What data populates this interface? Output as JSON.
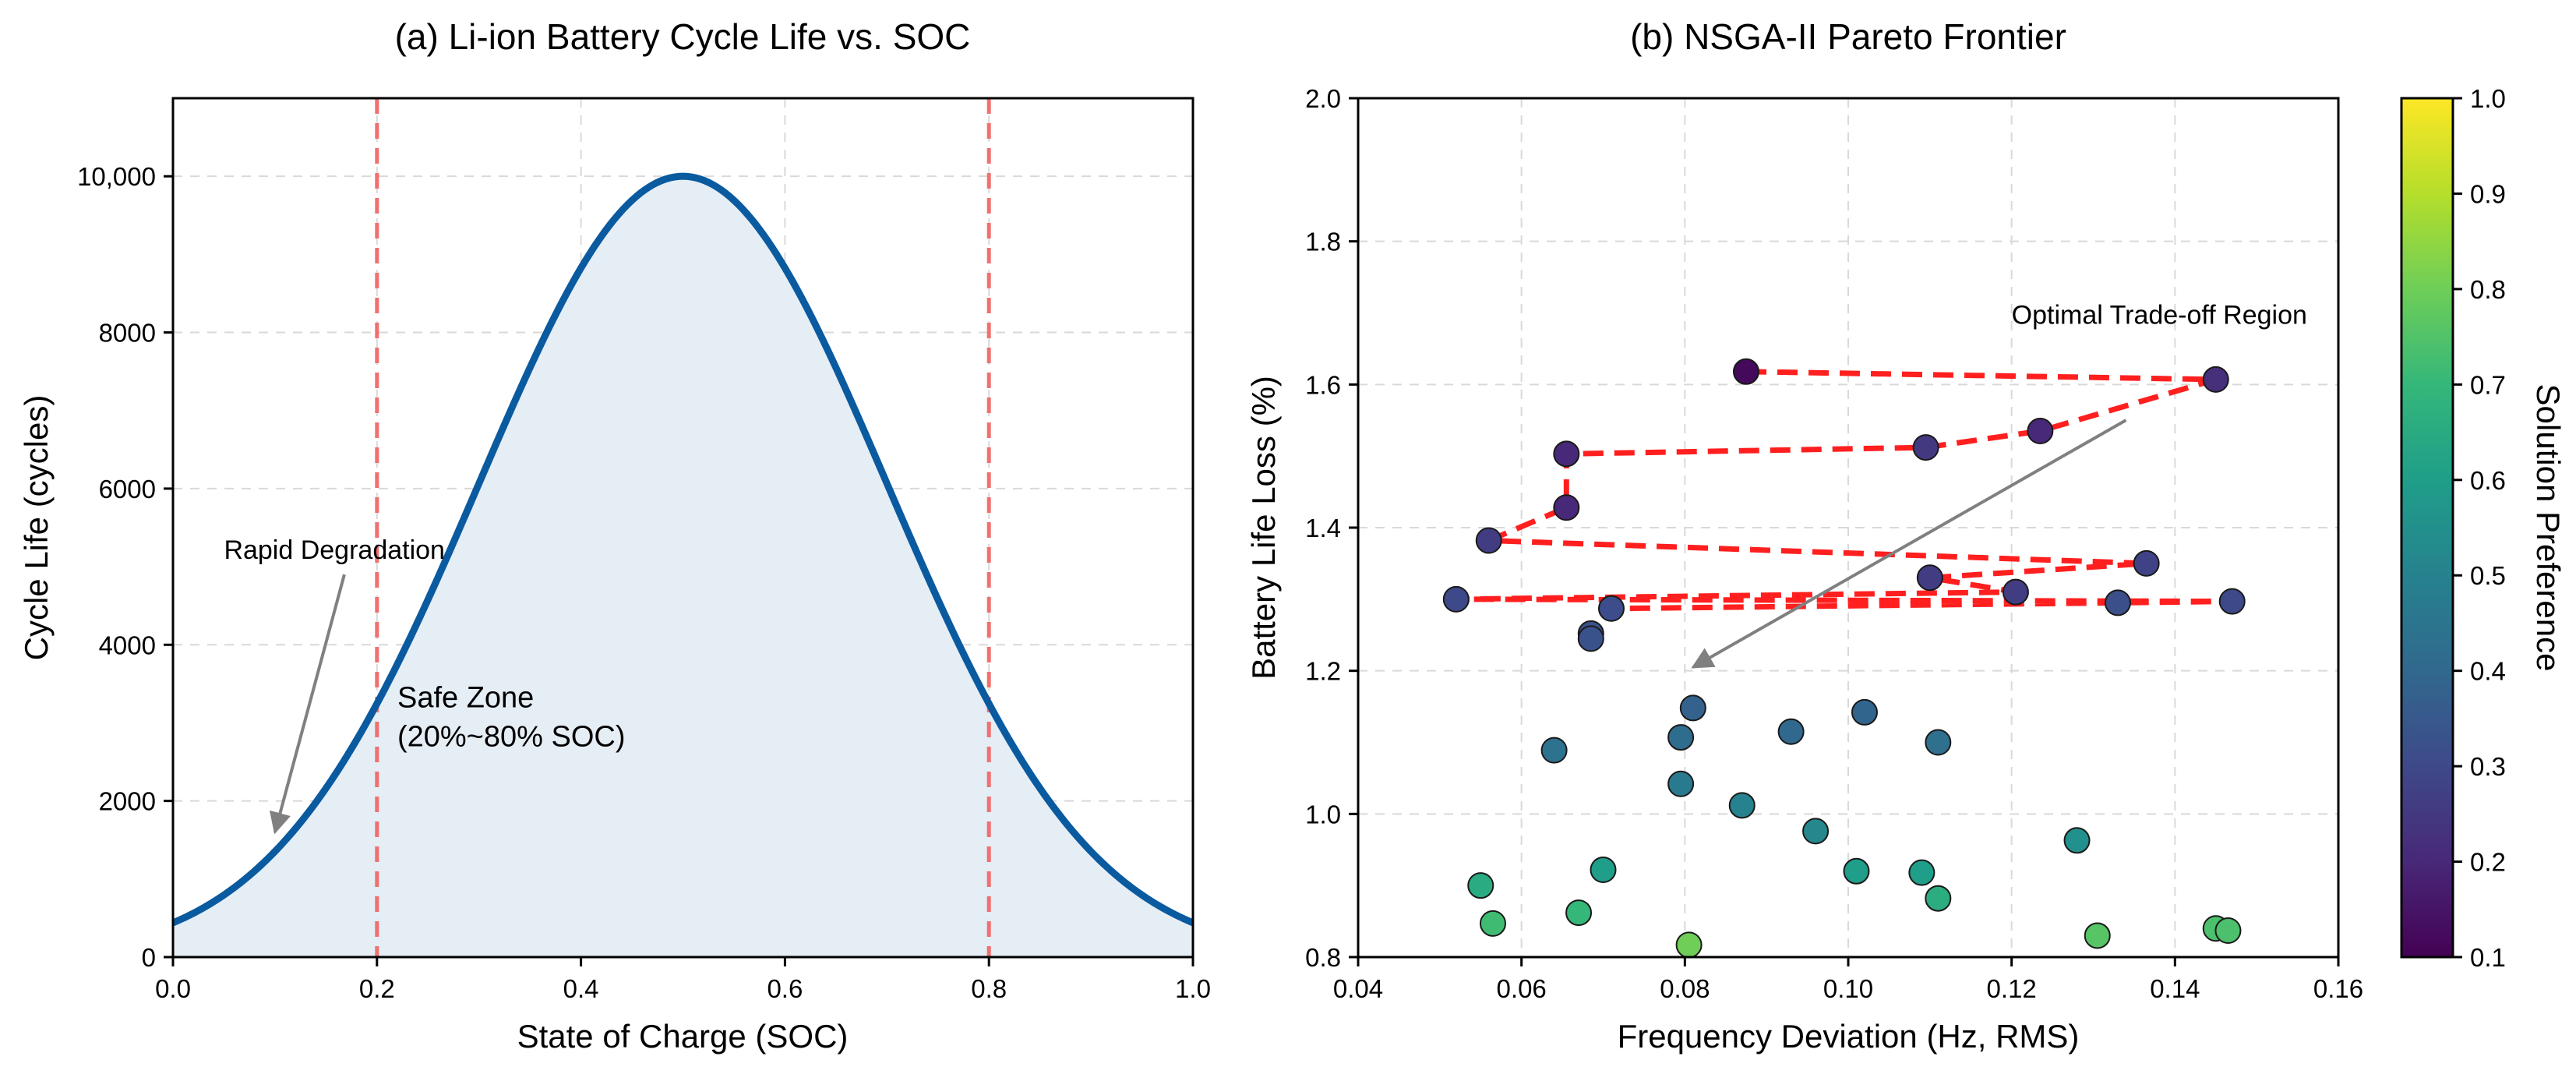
{
  "chart_data": [
    {
      "type": "area",
      "title": "(a) Li-ion Battery Cycle Life vs. SOC",
      "xlabel": "State of Charge (SOC)",
      "ylabel": "Cycle Life (cycles)",
      "xlim": [
        0.0,
        1.0
      ],
      "ylim": [
        0,
        11000
      ],
      "xticks": [
        0.0,
        0.2,
        0.4,
        0.6,
        0.8,
        1.0
      ],
      "xtick_labels": [
        "0.0",
        "0.2",
        "0.4",
        "0.6",
        "0.8",
        "1.0"
      ],
      "yticks": [
        0,
        2000,
        4000,
        6000,
        8000,
        10000
      ],
      "ytick_labels": [
        "0",
        "2000",
        "4000",
        "6000",
        "8000",
        "10,000"
      ],
      "grid": true,
      "curve": {
        "formula": "10000 * exp(-((soc - 0.5)^2) / (2 * 0.2^2))",
        "peak_x": 0.5,
        "peak_y": 10000,
        "sigma": 0.2,
        "line_color": "#0a5aa0",
        "fill_color": "#e5edf5"
      },
      "vlines": [
        {
          "x": 0.2,
          "color": "#f07070"
        },
        {
          "x": 0.8,
          "color": "#f07070"
        }
      ],
      "annotations": {
        "rapid_degradation": {
          "text": "Rapid Degradation",
          "text_x": 0.05,
          "text_y": 5000,
          "arrow_to_x": 0.1,
          "arrow_to_y": 1600
        },
        "safe_zone": {
          "line1": "Safe Zone",
          "line2": "(20%~80% SOC)",
          "x": 0.22,
          "y": 3200,
          "color": "#1a5fa8"
        }
      }
    },
    {
      "type": "scatter",
      "title": "(b) NSGA-II Pareto Frontier",
      "xlabel": "Frequency Deviation (Hz, RMS)",
      "ylabel": "Battery Life Loss (%)",
      "xlim": [
        0.04,
        0.16
      ],
      "ylim": [
        0.8,
        2.0
      ],
      "xticks": [
        0.04,
        0.06,
        0.08,
        0.1,
        0.12,
        0.14,
        0.16
      ],
      "xtick_labels": [
        "0.04",
        "0.06",
        "0.08",
        "0.10",
        "0.12",
        "0.14",
        "0.16"
      ],
      "yticks": [
        0.8,
        1.0,
        1.2,
        1.4,
        1.6,
        1.8,
        2.0
      ],
      "ytick_labels": [
        "0.8",
        "1.0",
        "1.2",
        "1.4",
        "1.6",
        "1.8",
        "2.0"
      ],
      "grid": true,
      "colormap": "viridis",
      "colorbar": {
        "label": "Solution Preference",
        "range": [
          0.1,
          1.0
        ],
        "ticks": [
          0.1,
          0.2,
          0.3,
          0.4,
          0.5,
          0.6,
          0.7,
          0.8,
          0.9,
          1.0
        ],
        "tick_labels": [
          "0.1",
          "0.2",
          "0.3",
          "0.4",
          "0.5",
          "0.6",
          "0.7",
          "0.8",
          "0.9",
          "1.0"
        ]
      },
      "points": [
        {
          "x": 0.0875,
          "y": 1.618,
          "c": 0.12
        },
        {
          "x": 0.145,
          "y": 1.607,
          "c": 0.22
        },
        {
          "x": 0.1235,
          "y": 1.535,
          "c": 0.2
        },
        {
          "x": 0.1095,
          "y": 1.512,
          "c": 0.25
        },
        {
          "x": 0.0655,
          "y": 1.503,
          "c": 0.2
        },
        {
          "x": 0.0655,
          "y": 1.428,
          "c": 0.2
        },
        {
          "x": 0.056,
          "y": 1.382,
          "c": 0.26
        },
        {
          "x": 0.1365,
          "y": 1.35,
          "c": 0.28
        },
        {
          "x": 0.11,
          "y": 1.33,
          "c": 0.26
        },
        {
          "x": 0.1205,
          "y": 1.31,
          "c": 0.26
        },
        {
          "x": 0.052,
          "y": 1.3,
          "c": 0.3
        },
        {
          "x": 0.147,
          "y": 1.297,
          "c": 0.3
        },
        {
          "x": 0.133,
          "y": 1.295,
          "c": 0.32
        },
        {
          "x": 0.071,
          "y": 1.287,
          "c": 0.31
        },
        {
          "x": 0.0685,
          "y": 1.252,
          "c": 0.33
        },
        {
          "x": 0.0685,
          "y": 1.245,
          "c": 0.33
        },
        {
          "x": 0.081,
          "y": 1.148,
          "c": 0.38
        },
        {
          "x": 0.102,
          "y": 1.142,
          "c": 0.39
        },
        {
          "x": 0.093,
          "y": 1.115,
          "c": 0.4
        },
        {
          "x": 0.0795,
          "y": 1.107,
          "c": 0.42
        },
        {
          "x": 0.111,
          "y": 1.1,
          "c": 0.43
        },
        {
          "x": 0.064,
          "y": 1.089,
          "c": 0.44
        },
        {
          "x": 0.0795,
          "y": 1.042,
          "c": 0.47
        },
        {
          "x": 0.087,
          "y": 1.012,
          "c": 0.5
        },
        {
          "x": 0.096,
          "y": 0.976,
          "c": 0.52
        },
        {
          "x": 0.128,
          "y": 0.963,
          "c": 0.55
        },
        {
          "x": 0.07,
          "y": 0.922,
          "c": 0.6
        },
        {
          "x": 0.101,
          "y": 0.92,
          "c": 0.6
        },
        {
          "x": 0.109,
          "y": 0.918,
          "c": 0.6
        },
        {
          "x": 0.055,
          "y": 0.9,
          "c": 0.65
        },
        {
          "x": 0.111,
          "y": 0.882,
          "c": 0.66
        },
        {
          "x": 0.067,
          "y": 0.862,
          "c": 0.7
        },
        {
          "x": 0.0565,
          "y": 0.847,
          "c": 0.72
        },
        {
          "x": 0.145,
          "y": 0.84,
          "c": 0.74
        },
        {
          "x": 0.1465,
          "y": 0.837,
          "c": 0.74
        },
        {
          "x": 0.1305,
          "y": 0.83,
          "c": 0.76
        },
        {
          "x": 0.0805,
          "y": 0.817,
          "c": 0.8
        }
      ],
      "frontier": {
        "color": "#ff1f1f",
        "points": [
          [
            0.0875,
            1.618
          ],
          [
            0.145,
            1.607
          ],
          [
            0.1235,
            1.535
          ],
          [
            0.1095,
            1.512
          ],
          [
            0.0655,
            1.503
          ],
          [
            0.0655,
            1.428
          ],
          [
            0.056,
            1.382
          ],
          [
            0.1365,
            1.35
          ],
          [
            0.11,
            1.33
          ],
          [
            0.1205,
            1.31
          ],
          [
            0.052,
            1.3
          ],
          [
            0.147,
            1.297
          ],
          [
            0.133,
            1.295
          ],
          [
            0.071,
            1.287
          ],
          [
            0.0685,
            1.252
          ]
        ]
      },
      "annotation": {
        "text": "Optimal Trade-off Region",
        "text_x": 0.12,
        "text_y": 1.7,
        "arrow_from_x": 0.134,
        "arrow_from_y": 1.365,
        "arrow_to_x": 0.081,
        "arrow_to_y": 1.205
      }
    }
  ]
}
